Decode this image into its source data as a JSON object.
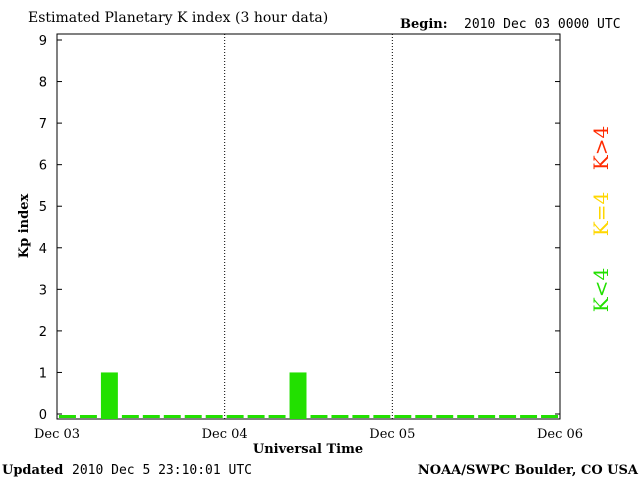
{
  "header": {
    "title": "Estimated Planetary K index (3 hour data)",
    "begin_label": "Begin:",
    "begin_value": "2010 Dec 03 0000 UTC"
  },
  "footer": {
    "updated_label": "Updated",
    "updated_value": "2010 Dec  5 23:10:01 UTC",
    "source": "NOAA/SWPC Boulder, CO USA"
  },
  "legend": {
    "high": {
      "label": "K>4",
      "color": "#ff2a00"
    },
    "mid": {
      "label": "K=4",
      "color": "#ffd700"
    },
    "low": {
      "label": "K<4",
      "color": "#22e000"
    }
  },
  "chart_data": {
    "type": "bar",
    "title": "Estimated Planetary K index (3 hour data)",
    "xlabel": "Universal Time",
    "ylabel": "Kp index",
    "ylim": [
      0,
      9
    ],
    "yticks": [
      0,
      1,
      2,
      3,
      4,
      5,
      6,
      7,
      8,
      9
    ],
    "xticks": [
      "Dec 03",
      "Dec 04",
      "Dec 05",
      "Dec 06"
    ],
    "x": [
      "Dec 03 00-03",
      "Dec 03 03-06",
      "Dec 03 06-09",
      "Dec 03 09-12",
      "Dec 03 12-15",
      "Dec 03 15-18",
      "Dec 03 18-21",
      "Dec 03 21-24",
      "Dec 04 00-03",
      "Dec 04 03-06",
      "Dec 04 06-09",
      "Dec 04 09-12",
      "Dec 04 12-15",
      "Dec 04 15-18",
      "Dec 04 18-21",
      "Dec 04 21-24",
      "Dec 05 00-03",
      "Dec 05 03-06",
      "Dec 05 06-09",
      "Dec 05 09-12",
      "Dec 05 12-15",
      "Dec 05 15-18",
      "Dec 05 18-21",
      "Dec 05 21-24"
    ],
    "values": [
      0,
      0,
      1,
      0,
      0,
      0,
      0,
      0,
      0,
      0,
      0,
      1,
      0,
      0,
      0,
      0,
      0,
      0,
      0,
      0,
      0,
      0,
      0,
      0
    ],
    "series_color": "#22e000",
    "grid": "vertical dotted lines at day boundaries"
  }
}
